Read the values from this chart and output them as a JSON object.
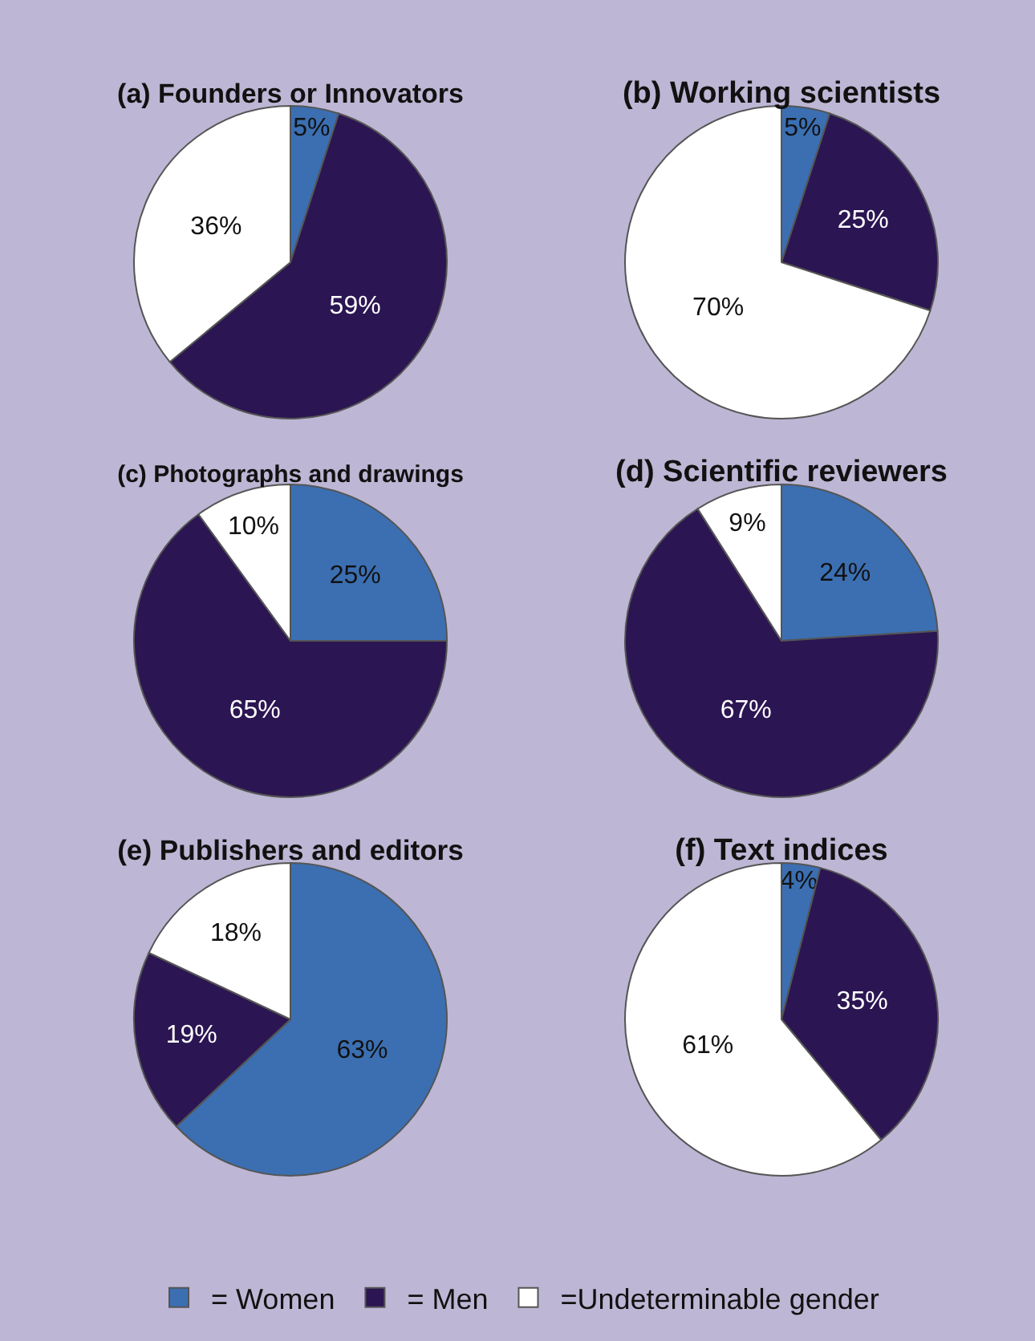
{
  "chart_data": [
    {
      "type": "pie",
      "title": "(a) Founders or Innovators",
      "categories": [
        "= Women",
        "= Men",
        "=Undeterminable gender"
      ],
      "values": [
        5,
        59,
        36
      ],
      "colors": [
        "#3b6fb2",
        "#2b1552",
        "#ffffff"
      ],
      "value_labels": [
        "5%",
        "59%",
        "36%"
      ],
      "legend": "bottom"
    },
    {
      "type": "pie",
      "title": "(b) Working scientists",
      "values": [
        5,
        25,
        70
      ],
      "colors": [
        "#3b6fb2",
        "#2b1552",
        "#ffffff"
      ],
      "value_labels": [
        "5%",
        "25%",
        "70%"
      ]
    },
    {
      "type": "pie",
      "title": "(c) Photographs and drawings",
      "values": [
        25,
        65,
        10
      ],
      "colors": [
        "#3b6fb2",
        "#2b1552",
        "#ffffff"
      ],
      "value_labels": [
        "25%",
        "65%",
        "10%"
      ]
    },
    {
      "type": "pie",
      "title": "(d) Scientific reviewers",
      "values": [
        24,
        67,
        9
      ],
      "colors": [
        "#3b6fb2",
        "#2b1552",
        "#ffffff"
      ],
      "value_labels": [
        "24%",
        "67%",
        "9%"
      ]
    },
    {
      "type": "pie",
      "title": "(e) Publishers and editors",
      "values": [
        63,
        19,
        18
      ],
      "colors": [
        "#3b6fb2",
        "#2b1552",
        "#ffffff"
      ],
      "value_labels": [
        "63%",
        "19%",
        "18%"
      ]
    },
    {
      "type": "pie",
      "title": "(f) Text indices",
      "values": [
        4,
        35,
        61
      ],
      "colors": [
        "#3b6fb2",
        "#2b1552",
        "#ffffff"
      ],
      "value_labels": [
        "4%",
        "35%",
        "61%"
      ]
    }
  ]
}
